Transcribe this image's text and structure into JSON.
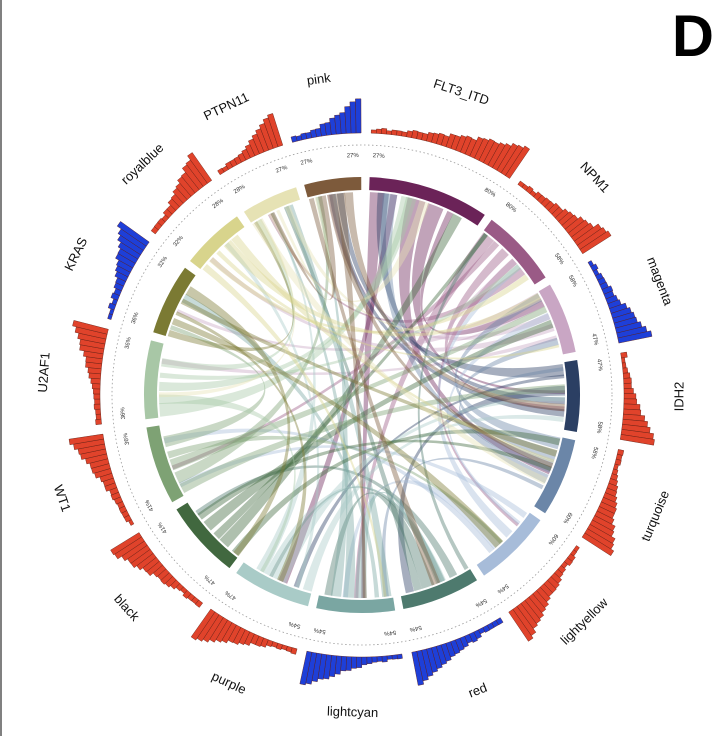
{
  "panel_label": "D",
  "colors": {
    "mutation_bar": "#e0432b",
    "module_bar": "#1e3fd8",
    "background": "#ffffff"
  },
  "sectors": [
    {
      "label": "FLT3_ITD",
      "kind": "mutation",
      "color": "#6b2358",
      "pct_start": "27%",
      "pct_end": "80%"
    },
    {
      "label": "NPM1",
      "kind": "mutation",
      "color": "#9a5a86",
      "pct_start": "80%",
      "pct_end": "58%"
    },
    {
      "label": "magenta",
      "kind": "module",
      "color": "#c9a6c4",
      "pct_start": "58%",
      "pct_end": "47%"
    },
    {
      "label": "IDH2",
      "kind": "mutation",
      "color": "#2b3f63",
      "pct_start": "47%",
      "pct_end": "58%"
    },
    {
      "label": "turquoise",
      "kind": "mutation",
      "color": "#6b86a8",
      "pct_start": "58%",
      "pct_end": "60%"
    },
    {
      "label": "lightyellow",
      "kind": "mutation",
      "color": "#a7bcd9",
      "pct_start": "60%",
      "pct_end": "54%"
    },
    {
      "label": "red",
      "kind": "module",
      "color": "#4e7a6e",
      "pct_start": "54%",
      "pct_end": "54%"
    },
    {
      "label": "lightcyan",
      "kind": "module",
      "color": "#7aa6a2",
      "pct_start": "54%",
      "pct_end": "54%"
    },
    {
      "label": "purple",
      "kind": "mutation",
      "color": "#a9cbc7",
      "pct_start": "54%",
      "pct_end": "47%"
    },
    {
      "label": "black",
      "kind": "mutation",
      "color": "#41683f",
      "pct_start": "47%",
      "pct_end": "41%"
    },
    {
      "label": "WT1",
      "kind": "mutation",
      "color": "#7ea274",
      "pct_start": "41%",
      "pct_end": "36%"
    },
    {
      "label": "U2AF1",
      "kind": "mutation",
      "color": "#a8c7a6",
      "pct_start": "36%",
      "pct_end": "36%"
    },
    {
      "label": "KRAS",
      "kind": "module",
      "color": "#7b7a33",
      "pct_start": "36%",
      "pct_end": "32%"
    },
    {
      "label": "royalblue",
      "kind": "mutation",
      "color": "#d8d48c",
      "pct_start": "32%",
      "pct_end": "28%"
    },
    {
      "label": "PTPN11",
      "kind": "mutation",
      "color": "#e6e2b4",
      "pct_start": "28%",
      "pct_end": "27%"
    },
    {
      "label": "pink",
      "kind": "module",
      "color": "#7d5a3b",
      "pct_start": "27%",
      "pct_end": "27%"
    }
  ]
}
